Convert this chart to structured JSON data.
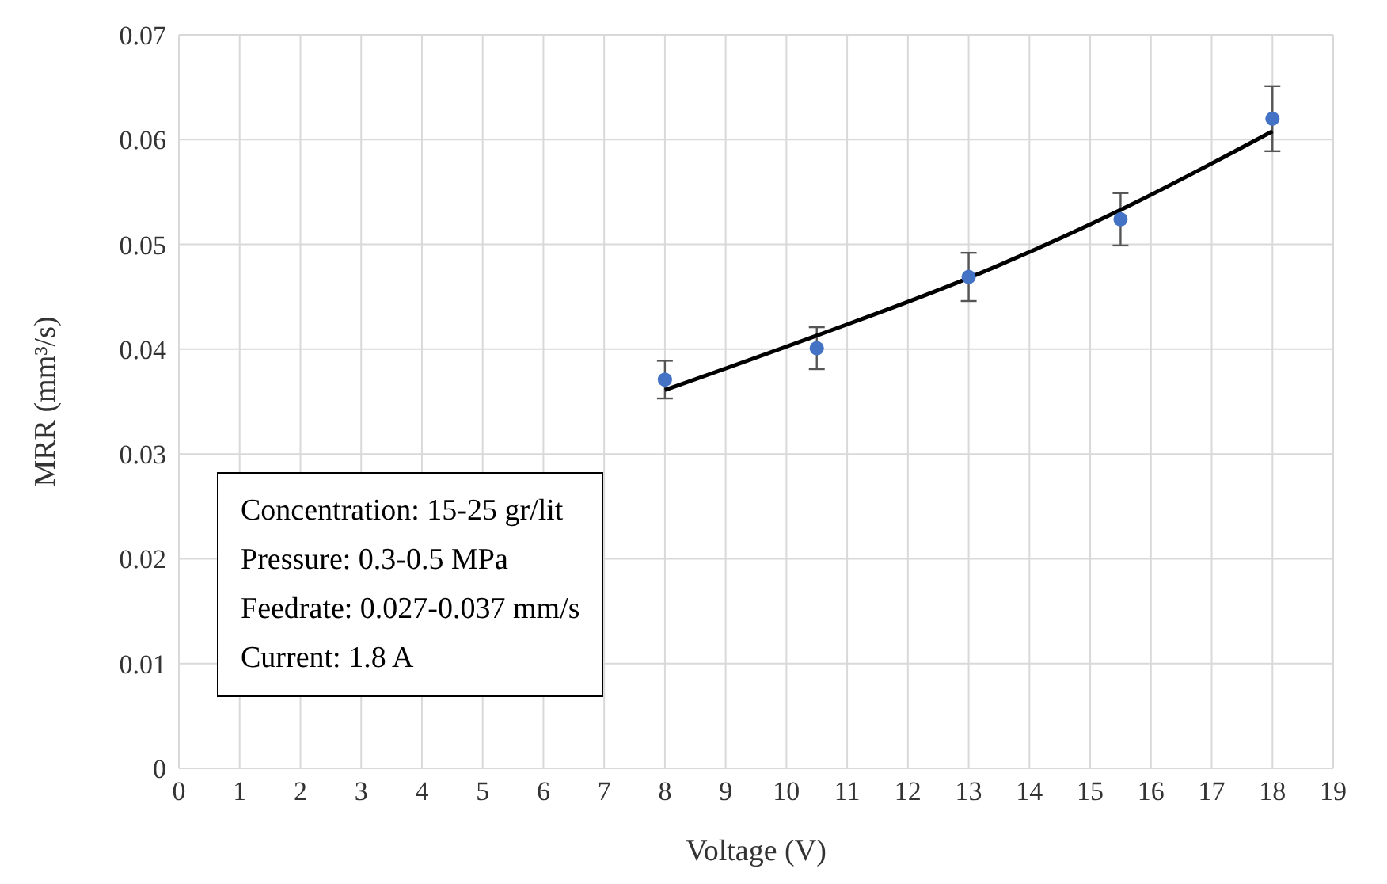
{
  "chart_data": {
    "type": "scatter",
    "xlabel": "Voltage (V)",
    "ylabel": "MRR  (mm³/s)",
    "x": [
      8,
      10.5,
      13,
      15.5,
      18
    ],
    "series": [
      {
        "color": "#4472c4",
        "values": [
          0.0371,
          0.0401,
          0.0469,
          0.0524,
          0.062
        ],
        "errors": [
          0.0018,
          0.002,
          0.0023,
          0.0025,
          0.0031
        ],
        "marker": "circle"
      },
      {
        "type": "line",
        "color": "#000000",
        "values": [
          0.0361,
          0.0413,
          0.0468,
          0.0533,
          0.0608
        ],
        "marker": "none",
        "line_style": "solid"
      }
    ],
    "xlim": [
      0,
      19
    ],
    "xticks": [
      0,
      1,
      2,
      3,
      4,
      5,
      6,
      7,
      8,
      9,
      10,
      11,
      12,
      13,
      14,
      15,
      16,
      17,
      18,
      19
    ],
    "ylim": [
      0,
      0.07
    ],
    "yticks": [
      0,
      0.01,
      0.02,
      0.03,
      0.04,
      0.05,
      0.06,
      0.07
    ],
    "grid": true,
    "legend": false,
    "annotations": [
      "Concentration: 15-25 gr/lit",
      "Pressure: 0.3-0.5 MPa",
      "Feedrate: 0.027-0.037 mm/s",
      "Current: 1.8 A"
    ]
  }
}
